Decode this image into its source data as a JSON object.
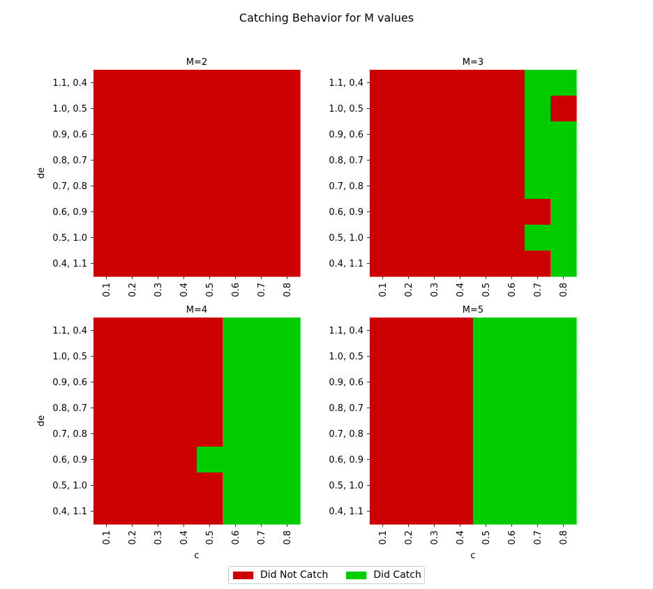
{
  "title": "Catching Behavior for M values",
  "colors": {
    "not_catch": "#cc0000",
    "catch": "#00cc00"
  },
  "legend": [
    {
      "label": "Did Not Catch",
      "color_key": "not_catch"
    },
    {
      "label": "Did Catch",
      "color_key": "catch"
    }
  ],
  "chart_data": [
    {
      "type": "heatmap",
      "title": "M=2",
      "xlabel": "",
      "ylabel": "de",
      "x_categories": [
        "0.1",
        "0.2",
        "0.3",
        "0.4",
        "0.5",
        "0.6",
        "0.7",
        "0.8"
      ],
      "y_categories": [
        "1.1, 0.4",
        "1.0, 0.5",
        "0.9, 0.6",
        "0.8, 0.7",
        "0.7, 0.8",
        "0.6, 0.9",
        "0.5, 1.0",
        "0.4, 1.1"
      ],
      "values": [
        [
          0,
          0,
          0,
          0,
          0,
          0,
          0,
          0
        ],
        [
          0,
          0,
          0,
          0,
          0,
          0,
          0,
          0
        ],
        [
          0,
          0,
          0,
          0,
          0,
          0,
          0,
          0
        ],
        [
          0,
          0,
          0,
          0,
          0,
          0,
          0,
          0
        ],
        [
          0,
          0,
          0,
          0,
          0,
          0,
          0,
          0
        ],
        [
          0,
          0,
          0,
          0,
          0,
          0,
          0,
          0
        ],
        [
          0,
          0,
          0,
          0,
          0,
          0,
          0,
          0
        ],
        [
          0,
          0,
          0,
          0,
          0,
          0,
          0,
          0
        ]
      ]
    },
    {
      "type": "heatmap",
      "title": "M=3",
      "xlabel": "",
      "ylabel": "",
      "x_categories": [
        "0.1",
        "0.2",
        "0.3",
        "0.4",
        "0.5",
        "0.6",
        "0.7",
        "0.8"
      ],
      "y_categories": [
        "1.1, 0.4",
        "1.0, 0.5",
        "0.9, 0.6",
        "0.8, 0.7",
        "0.7, 0.8",
        "0.6, 0.9",
        "0.5, 1.0",
        "0.4, 1.1"
      ],
      "values": [
        [
          0,
          0,
          0,
          0,
          0,
          0,
          1,
          1
        ],
        [
          0,
          0,
          0,
          0,
          0,
          0,
          1,
          0
        ],
        [
          0,
          0,
          0,
          0,
          0,
          0,
          1,
          1
        ],
        [
          0,
          0,
          0,
          0,
          0,
          0,
          1,
          1
        ],
        [
          0,
          0,
          0,
          0,
          0,
          0,
          1,
          1
        ],
        [
          0,
          0,
          0,
          0,
          0,
          0,
          0,
          1
        ],
        [
          0,
          0,
          0,
          0,
          0,
          0,
          1,
          1
        ],
        [
          0,
          0,
          0,
          0,
          0,
          0,
          0,
          1
        ]
      ]
    },
    {
      "type": "heatmap",
      "title": "M=4",
      "xlabel": "c",
      "ylabel": "de",
      "x_categories": [
        "0.1",
        "0.2",
        "0.3",
        "0.4",
        "0.5",
        "0.6",
        "0.7",
        "0.8"
      ],
      "y_categories": [
        "1.1, 0.4",
        "1.0, 0.5",
        "0.9, 0.6",
        "0.8, 0.7",
        "0.7, 0.8",
        "0.6, 0.9",
        "0.5, 1.0",
        "0.4, 1.1"
      ],
      "values": [
        [
          0,
          0,
          0,
          0,
          0,
          1,
          1,
          1
        ],
        [
          0,
          0,
          0,
          0,
          0,
          1,
          1,
          1
        ],
        [
          0,
          0,
          0,
          0,
          0,
          1,
          1,
          1
        ],
        [
          0,
          0,
          0,
          0,
          0,
          1,
          1,
          1
        ],
        [
          0,
          0,
          0,
          0,
          0,
          1,
          1,
          1
        ],
        [
          0,
          0,
          0,
          0,
          1,
          1,
          1,
          1
        ],
        [
          0,
          0,
          0,
          0,
          0,
          1,
          1,
          1
        ],
        [
          0,
          0,
          0,
          0,
          0,
          1,
          1,
          1
        ]
      ]
    },
    {
      "type": "heatmap",
      "title": "M=5",
      "xlabel": "c",
      "ylabel": "",
      "x_categories": [
        "0.1",
        "0.2",
        "0.3",
        "0.4",
        "0.5",
        "0.6",
        "0.7",
        "0.8"
      ],
      "y_categories": [
        "1.1, 0.4",
        "1.0, 0.5",
        "0.9, 0.6",
        "0.8, 0.7",
        "0.7, 0.8",
        "0.6, 0.9",
        "0.5, 1.0",
        "0.4, 1.1"
      ],
      "values": [
        [
          0,
          0,
          0,
          0,
          1,
          1,
          1,
          1
        ],
        [
          0,
          0,
          0,
          0,
          1,
          1,
          1,
          1
        ],
        [
          0,
          0,
          0,
          0,
          1,
          1,
          1,
          1
        ],
        [
          0,
          0,
          0,
          0,
          1,
          1,
          1,
          1
        ],
        [
          0,
          0,
          0,
          0,
          1,
          1,
          1,
          1
        ],
        [
          0,
          0,
          0,
          0,
          1,
          1,
          1,
          1
        ],
        [
          0,
          0,
          0,
          0,
          1,
          1,
          1,
          1
        ],
        [
          0,
          0,
          0,
          0,
          1,
          1,
          1,
          1
        ]
      ]
    }
  ]
}
